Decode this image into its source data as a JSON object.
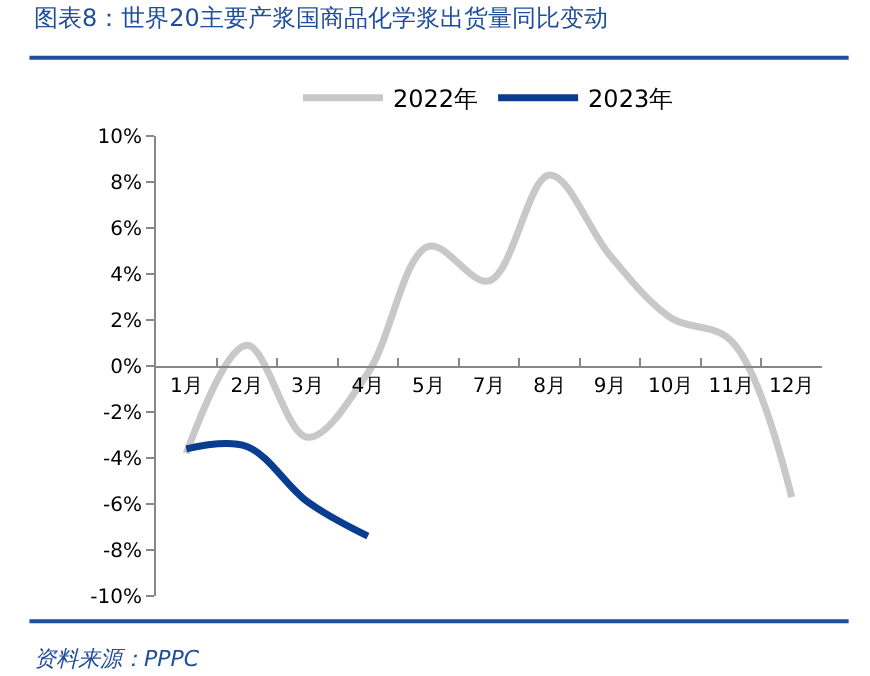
{
  "chart_data": {
    "type": "line",
    "title": "图表8：世界20主要产浆国商品化学浆出货量同比变动",
    "categories": [
      "1月",
      "2月",
      "3月",
      "4月",
      "5月",
      "7月",
      "8月",
      "9月",
      "10月",
      "11月",
      "12月"
    ],
    "series": [
      {
        "name": "2022年",
        "color": "#c8c8c8",
        "values": [
          -3.8,
          0.9,
          -3.1,
          -0.3,
          5.2,
          3.7,
          8.3,
          4.8,
          2.1,
          1.1,
          -5.7
        ]
      },
      {
        "name": "2023年",
        "color": "#0a3d8f",
        "values": [
          -3.6,
          -3.5,
          -5.9,
          -7.4,
          null,
          null,
          null,
          null,
          null,
          null,
          null
        ]
      }
    ],
    "ylim": [
      -10,
      10
    ],
    "yticks": [
      {
        "value": -10,
        "label": "-10%"
      },
      {
        "value": -8,
        "label": "-8%"
      },
      {
        "value": -6,
        "label": "-6%"
      },
      {
        "value": -4,
        "label": "-4%"
      },
      {
        "value": -2,
        "label": "-2%"
      },
      {
        "value": 0,
        "label": "0%"
      },
      {
        "value": 2,
        "label": "2%"
      },
      {
        "value": 4,
        "label": "4%"
      },
      {
        "value": 6,
        "label": "6%"
      },
      {
        "value": 8,
        "label": "8%"
      },
      {
        "value": 10,
        "label": "10%"
      }
    ],
    "legend": "top",
    "marker": "none",
    "line_style": "solid",
    "annotations": [
      "资料来源：PPPC"
    ]
  }
}
